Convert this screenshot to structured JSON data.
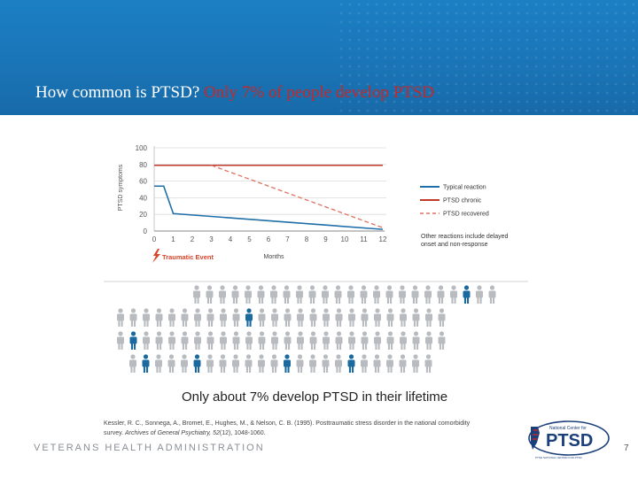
{
  "slide": {
    "title_main": "How common is PTSD?",
    "title_highlight": "Only 7% of people develop PTSD",
    "footer_agency": "VETERANS HEALTH ADMINISTRATION",
    "page_number": "7",
    "logo_small_text": "National Center for",
    "logo_main_text": "PTSD",
    "logo_tagline": "PTSD  NATIONAL CENTER FOR PTSD"
  },
  "colors": {
    "banner": "#1a74b6",
    "typical": "#1f6fa8",
    "chronic": "#c0392b",
    "recovered": "#e07060",
    "person_gray": "#b8bcc0",
    "person_blue": "#1a6aa0"
  },
  "chart_data": [
    {
      "type": "line",
      "title": "",
      "xlabel": "Months",
      "ylabel": "PTSD symptoms",
      "x_ticks": [
        "0",
        "1",
        "2",
        "3",
        "4",
        "5",
        "6",
        "7",
        "8",
        "9",
        "10",
        "11",
        "12"
      ],
      "y_ticks": [
        "0",
        "20",
        "40",
        "60",
        "80",
        "100"
      ],
      "xlim": [
        0,
        12
      ],
      "ylim": [
        0,
        100
      ],
      "grid": true,
      "event_label": "Traumatic Event",
      "series": [
        {
          "name": "Typical reaction",
          "style": "solid",
          "x": [
            0,
            0.5,
            1,
            12
          ],
          "y": [
            54,
            54,
            21,
            2
          ]
        },
        {
          "name": "PTSD chronic",
          "style": "solid",
          "x": [
            0,
            12
          ],
          "y": [
            79,
            79
          ]
        },
        {
          "name": "PTSD recovered",
          "style": "dashed",
          "x": [
            3,
            12
          ],
          "y": [
            79,
            4
          ]
        }
      ],
      "legend": [
        "Typical reaction",
        "PTSD chronic",
        "PTSD recovered"
      ],
      "legend_position": "right",
      "note": "Other reactions include delayed onset and non-response"
    },
    {
      "type": "pictogram",
      "caption": "Only about 7% develop PTSD in their lifetime",
      "total": 100,
      "highlighted": 7,
      "highlighted_positions": [
        21,
        34,
        51,
        77,
        81,
        88,
        93
      ],
      "row_lengths": [
        24,
        26,
        26,
        24
      ]
    }
  ],
  "citation": {
    "line1": "Kessler, R. C., Sonnega, A., Bromet, E., Hughes, M., & Nelson, C. B. (1995). Posttraumatic stress disorder in the national comorbidity",
    "line2_plain": "survey.",
    "line2_italic": "Archives of General Psychiatry, 52",
    "line2_rest": "(12), 1048-1060."
  }
}
